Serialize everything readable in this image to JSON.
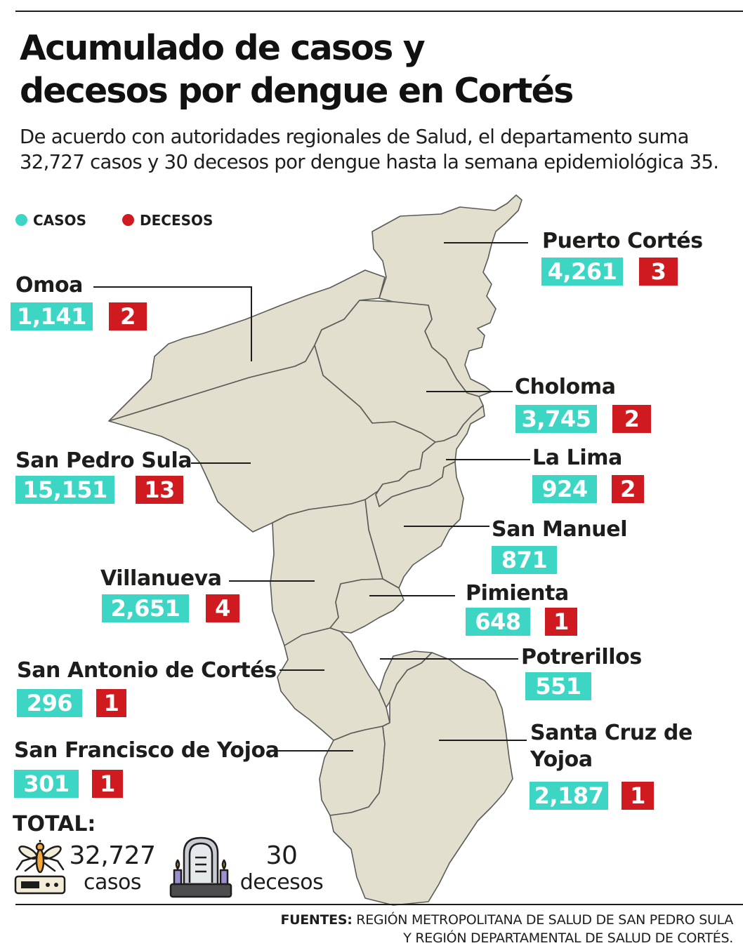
{
  "title": {
    "line1": "Acumulado de casos y",
    "line2": "decesos por dengue en Cortés"
  },
  "subtitle": "De acuerdo con autoridades regionales de Salud, el departamento suma 32,727 casos y 30 decesos por dengue hasta la semana epidemiológica 35.",
  "legend": {
    "cases": {
      "label": "CASOS",
      "color": "#3dd6c4"
    },
    "deaths": {
      "label": "DECESOS",
      "color": "#cf1b20"
    }
  },
  "municipalities": {
    "puerto_cortes": {
      "name": "Puerto Cortés",
      "cases": "4,261",
      "deaths": "3"
    },
    "omoa": {
      "name": "Omoa",
      "cases": "1,141",
      "deaths": "2"
    },
    "choloma": {
      "name": "Choloma",
      "cases": "3,745",
      "deaths": "2"
    },
    "la_lima": {
      "name": "La Lima",
      "cases": "924",
      "deaths": "2"
    },
    "san_pedro_sula": {
      "name": "San Pedro Sula",
      "cases": "15,151",
      "deaths": "13"
    },
    "san_manuel": {
      "name": "San Manuel",
      "cases": "871"
    },
    "villanueva": {
      "name": "Villanueva",
      "cases": "2,651",
      "deaths": "4"
    },
    "pimienta": {
      "name": "Pimienta",
      "cases": "648",
      "deaths": "1"
    },
    "potrerillos": {
      "name": "Potrerillos",
      "cases": "551"
    },
    "san_antonio": {
      "name": "San Antonio de Cortés",
      "cases": "296",
      "deaths": "1"
    },
    "san_francisco": {
      "name": "San Francisco de Yojoa",
      "cases": "301",
      "deaths": "1"
    },
    "santa_cruz": {
      "name_line1": "Santa Cruz de",
      "name_line2": "Yojoa",
      "cases": "2,187",
      "deaths": "1"
    }
  },
  "total": {
    "label": "TOTAL:",
    "cases_value": "32,727",
    "cases_unit": "casos",
    "deaths_value": "30",
    "deaths_unit": "decesos"
  },
  "sources": {
    "label": "FUENTES:",
    "line1": "REGIÓN METROPOLITANA DE SALUD DE SAN PEDRO SULA",
    "line2": "Y REGIÓN DEPARTAMENTAL DE SALUD DE CORTÉS."
  },
  "icons": {
    "mosquito": "mosquito-icon",
    "grave": "gravestone-icon"
  }
}
